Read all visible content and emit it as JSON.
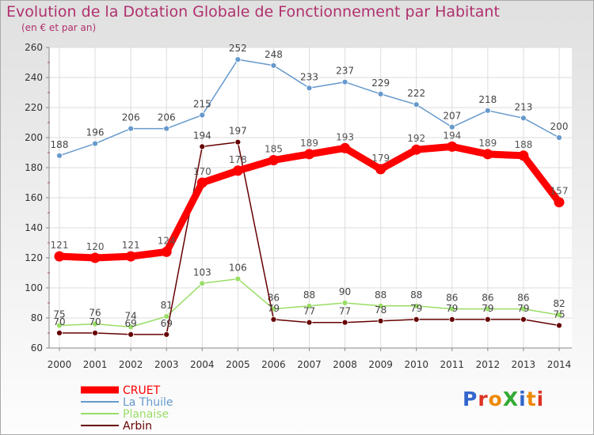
{
  "title": "Evolution de la Dotation Globale de Fonctionnement par Habitant",
  "subtitle": "(en € et par an)",
  "logo": "ProXiti",
  "chart_data": {
    "type": "line",
    "x": [
      2000,
      2001,
      2002,
      2003,
      2004,
      2005,
      2006,
      2007,
      2008,
      2009,
      2010,
      2011,
      2012,
      2013,
      2014
    ],
    "ylim": [
      60,
      260
    ],
    "yticks": [
      60,
      80,
      100,
      120,
      140,
      160,
      180,
      200,
      220,
      240,
      260
    ],
    "grid": true,
    "legend_position": "bottom-left",
    "series": [
      {
        "name": "CRUET",
        "color": "#ff0000",
        "values": [
          121,
          120,
          121,
          124,
          170,
          178,
          185,
          189,
          193,
          179,
          192,
          194,
          189,
          188,
          157
        ]
      },
      {
        "name": "La Thuile",
        "color": "#6699cc",
        "values": [
          188,
          196,
          206,
          206,
          215,
          252,
          248,
          233,
          237,
          229,
          222,
          207,
          218,
          213,
          200
        ]
      },
      {
        "name": "Planaise",
        "color": "#99dd66",
        "values": [
          75,
          76,
          74,
          81,
          103,
          106,
          86,
          88,
          90,
          88,
          88,
          86,
          86,
          86,
          82
        ]
      },
      {
        "name": "Arbin",
        "color": "#660000",
        "values": [
          70,
          70,
          69,
          69,
          194,
          197,
          79,
          77,
          77,
          78,
          79,
          79,
          79,
          79,
          75
        ]
      }
    ]
  }
}
